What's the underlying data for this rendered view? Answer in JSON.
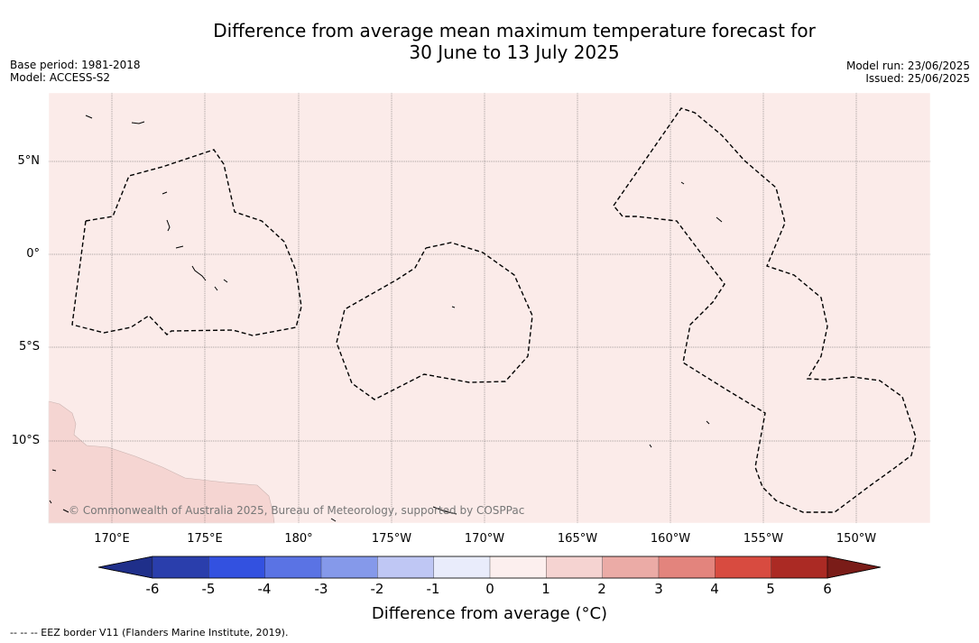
{
  "title_line1": "Difference from average mean maximum temperature forecast for",
  "title_line2": "30 June to 13 July 2025",
  "base_period": "Base period: 1981-2018",
  "model": "Model: ACCESS-S2",
  "model_run": "Model run: 23/06/2025",
  "issued": "Issued: 25/06/2025",
  "lat_labels": [
    "5°N",
    "0°",
    "5°S",
    "10°S"
  ],
  "lon_labels": [
    "170°E",
    "175°E",
    "180°",
    "175°W",
    "170°W",
    "165°W",
    "160°W",
    "155°W",
    "150°W"
  ],
  "copyright": "© Commonwealth of Australia 2025, Bureau of Meteorology, supported by COSPPac",
  "colorbar": {
    "label": "Difference from average (°C)",
    "ticks": [
      "-6",
      "-5",
      "-4",
      "-3",
      "-2",
      "-1",
      "0",
      "1",
      "2",
      "3",
      "4",
      "5",
      "6"
    ],
    "colors": [
      "#1f2f8a",
      "#2a3eac",
      "#3351e0",
      "#5a73e4",
      "#8599ea",
      "#bfc7f4",
      "#e9ecfb",
      "#fcefee",
      "#f5d3d1",
      "#ebaba6",
      "#e3847d",
      "#d84b40",
      "#ab2a24",
      "#7a1c18"
    ]
  },
  "map": {
    "ocean_color": "#fbebe9",
    "land_color": "#f5d5d2"
  },
  "footer": "--  --  -- EEZ border V11 (Flanders Marine Institute, 2019)."
}
